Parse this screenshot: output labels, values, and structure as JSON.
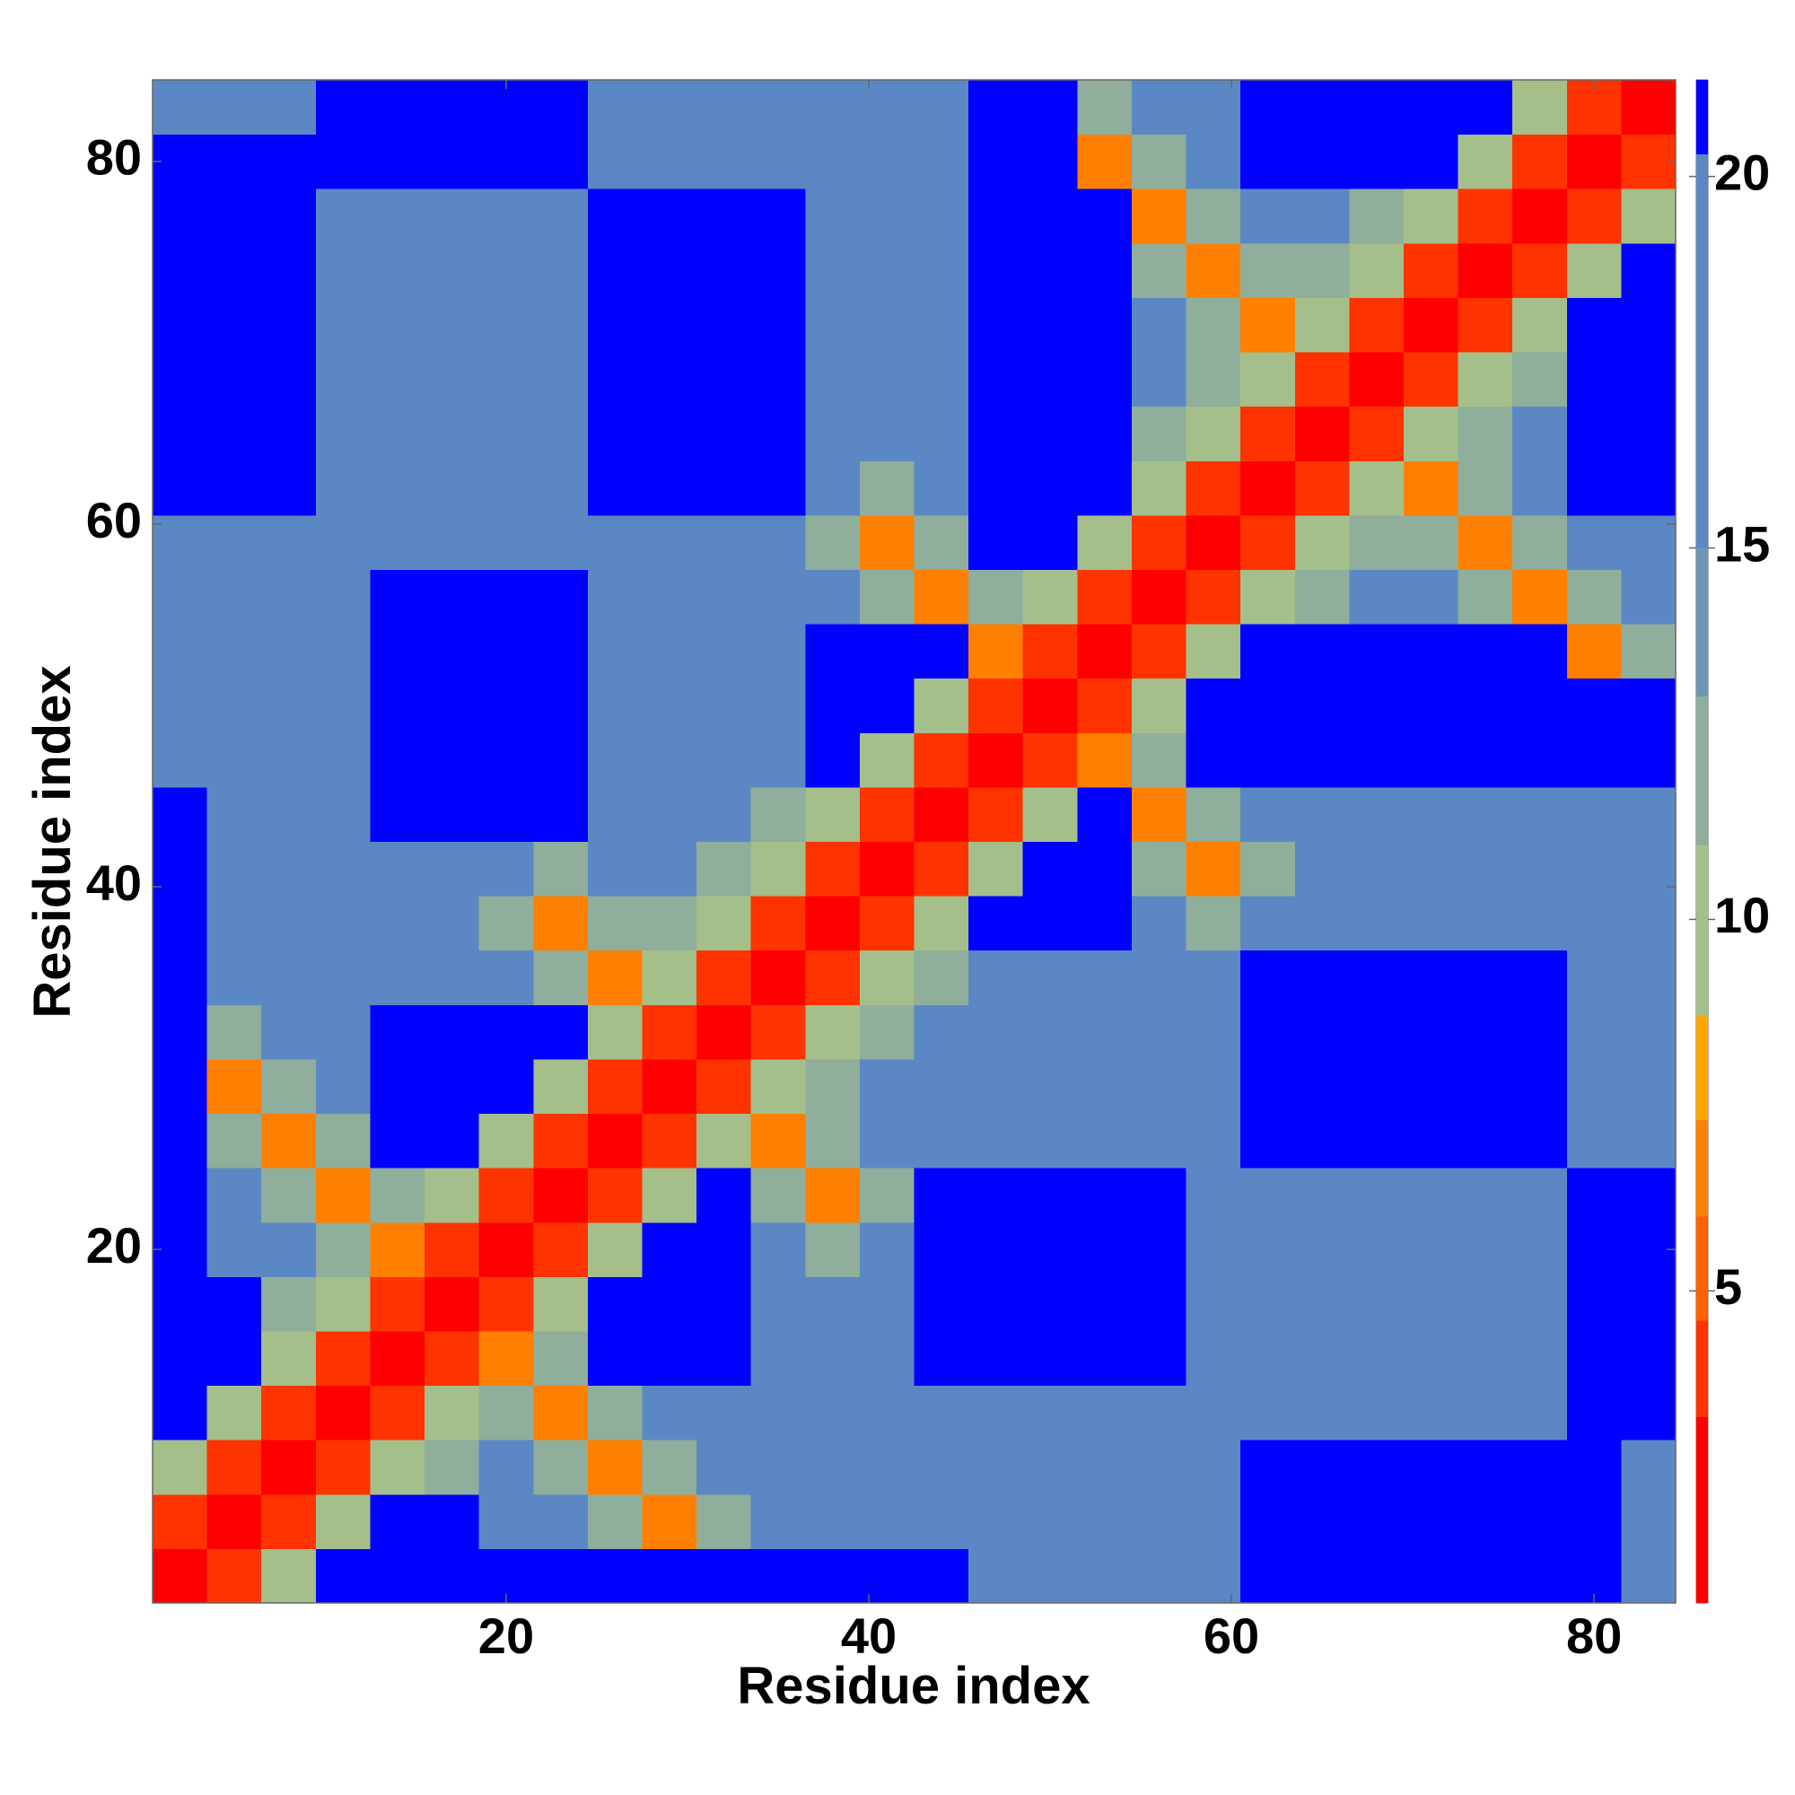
{
  "chart_data": {
    "type": "heatmap",
    "x_label": "Residue index",
    "y_label": "Residue index",
    "x": [
      2,
      5,
      8,
      11,
      14,
      17,
      20,
      23,
      26,
      29,
      32,
      35,
      38,
      41,
      44,
      47,
      50,
      53,
      56,
      59,
      62,
      65,
      68,
      71,
      74,
      77,
      80,
      83
    ],
    "y": [
      2,
      5,
      8,
      11,
      14,
      17,
      20,
      23,
      26,
      29,
      32,
      35,
      38,
      41,
      44,
      47,
      50,
      53,
      56,
      59,
      62,
      65,
      68,
      71,
      74,
      77,
      80,
      83
    ],
    "z": [
      [
        2,
        4,
        9,
        21,
        21,
        21,
        21,
        21,
        21,
        21,
        21,
        21,
        21,
        21,
        21,
        15,
        15,
        15,
        15,
        15,
        21,
        21,
        21,
        21,
        21,
        21,
        21,
        15
      ],
      [
        4,
        2,
        4,
        9,
        21,
        21,
        15,
        15,
        11,
        6,
        11,
        15,
        15,
        15,
        15,
        15,
        15,
        15,
        15,
        15,
        21,
        21,
        21,
        21,
        21,
        21,
        21,
        15
      ],
      [
        9,
        4,
        2,
        4,
        9,
        12,
        15,
        11,
        6,
        11,
        15,
        15,
        15,
        15,
        15,
        15,
        15,
        15,
        15,
        15,
        21,
        21,
        21,
        21,
        21,
        21,
        21,
        15
      ],
      [
        21,
        9,
        4,
        2,
        4,
        9,
        11,
        6,
        11,
        15,
        15,
        15,
        15,
        15,
        15,
        15,
        15,
        15,
        15,
        15,
        15,
        15,
        15,
        15,
        15,
        15,
        21,
        21
      ],
      [
        21,
        21,
        9,
        4,
        2,
        4,
        6,
        11,
        21,
        21,
        21,
        15,
        15,
        15,
        21,
        21,
        21,
        21,
        21,
        15,
        15,
        15,
        15,
        15,
        15,
        15,
        21,
        21
      ],
      [
        21,
        21,
        12,
        9,
        4,
        2,
        4,
        9,
        21,
        21,
        21,
        15,
        15,
        15,
        21,
        21,
        21,
        21,
        21,
        15,
        15,
        15,
        15,
        15,
        15,
        15,
        21,
        21
      ],
      [
        21,
        15,
        15,
        11,
        6,
        4,
        2,
        4,
        9,
        21,
        21,
        15,
        11,
        15,
        21,
        21,
        21,
        21,
        21,
        15,
        15,
        15,
        15,
        15,
        15,
        15,
        21,
        21
      ],
      [
        21,
        15,
        11,
        6,
        11,
        9,
        4,
        2,
        4,
        9,
        21,
        11,
        6,
        11,
        21,
        21,
        21,
        21,
        21,
        15,
        15,
        15,
        15,
        15,
        15,
        15,
        21,
        21
      ],
      [
        21,
        11,
        6,
        11,
        21,
        21,
        9,
        4,
        2,
        4,
        9,
        6,
        11,
        15,
        15,
        15,
        15,
        15,
        15,
        15,
        21,
        21,
        21,
        21,
        21,
        21,
        15,
        15
      ],
      [
        21,
        6,
        11,
        15,
        21,
        21,
        21,
        9,
        4,
        2,
        4,
        9,
        12,
        15,
        15,
        15,
        15,
        15,
        15,
        15,
        21,
        21,
        21,
        21,
        21,
        21,
        15,
        15
      ],
      [
        21,
        11,
        15,
        15,
        21,
        21,
        21,
        21,
        9,
        4,
        2,
        4,
        9,
        12,
        15,
        15,
        15,
        15,
        15,
        15,
        21,
        21,
        21,
        21,
        21,
        21,
        15,
        15
      ],
      [
        21,
        15,
        15,
        15,
        15,
        15,
        15,
        11,
        6,
        9,
        4,
        2,
        4,
        9,
        12,
        15,
        15,
        15,
        15,
        15,
        21,
        21,
        21,
        21,
        21,
        21,
        15,
        15
      ],
      [
        21,
        15,
        15,
        15,
        15,
        15,
        11,
        6,
        11,
        12,
        9,
        4,
        2,
        4,
        9,
        21,
        21,
        21,
        15,
        11,
        15,
        15,
        15,
        15,
        15,
        15,
        15,
        15
      ],
      [
        21,
        15,
        15,
        15,
        15,
        15,
        15,
        11,
        15,
        15,
        12,
        9,
        4,
        2,
        4,
        9,
        21,
        21,
        11,
        6,
        11,
        15,
        15,
        15,
        15,
        15,
        15,
        15
      ],
      [
        21,
        15,
        15,
        15,
        21,
        21,
        21,
        21,
        15,
        15,
        15,
        12,
        9,
        4,
        2,
        4,
        9,
        21,
        6,
        11,
        15,
        15,
        15,
        15,
        15,
        15,
        15,
        15
      ],
      [
        15,
        15,
        15,
        15,
        21,
        21,
        21,
        21,
        15,
        15,
        15,
        15,
        21,
        9,
        4,
        2,
        4,
        6,
        11,
        21,
        21,
        21,
        21,
        21,
        21,
        21,
        21,
        21
      ],
      [
        15,
        15,
        15,
        15,
        21,
        21,
        21,
        21,
        15,
        15,
        15,
        15,
        21,
        21,
        9,
        4,
        2,
        4,
        9,
        21,
        21,
        21,
        21,
        21,
        21,
        21,
        21,
        21
      ],
      [
        15,
        15,
        15,
        15,
        21,
        21,
        21,
        21,
        15,
        15,
        15,
        15,
        21,
        21,
        21,
        6,
        4,
        2,
        4,
        9,
        21,
        21,
        21,
        21,
        21,
        21,
        6,
        11
      ],
      [
        15,
        15,
        15,
        15,
        21,
        21,
        21,
        21,
        15,
        15,
        15,
        15,
        15,
        11,
        6,
        11,
        9,
        4,
        2,
        4,
        9,
        12,
        15,
        15,
        11,
        6,
        11,
        15
      ],
      [
        15,
        15,
        15,
        15,
        15,
        15,
        15,
        15,
        15,
        15,
        15,
        15,
        11,
        6,
        11,
        21,
        21,
        9,
        4,
        2,
        4,
        9,
        12,
        11,
        6,
        11,
        15,
        15
      ],
      [
        21,
        21,
        21,
        15,
        15,
        15,
        15,
        15,
        21,
        21,
        21,
        21,
        15,
        11,
        15,
        21,
        21,
        21,
        9,
        4,
        2,
        4,
        9,
        6,
        11,
        15,
        21,
        21
      ],
      [
        21,
        21,
        21,
        15,
        15,
        15,
        15,
        15,
        21,
        21,
        21,
        21,
        15,
        15,
        15,
        21,
        21,
        21,
        12,
        9,
        4,
        2,
        4,
        9,
        12,
        15,
        21,
        21
      ],
      [
        21,
        21,
        21,
        15,
        15,
        15,
        15,
        15,
        21,
        21,
        21,
        21,
        15,
        15,
        15,
        21,
        21,
        21,
        15,
        12,
        9,
        4,
        2,
        4,
        9,
        12,
        21,
        21
      ],
      [
        21,
        21,
        21,
        15,
        15,
        15,
        15,
        15,
        21,
        21,
        21,
        21,
        15,
        15,
        15,
        21,
        21,
        21,
        15,
        11,
        6,
        9,
        4,
        2,
        4,
        9,
        21,
        21
      ],
      [
        21,
        21,
        21,
        15,
        15,
        15,
        15,
        15,
        21,
        21,
        21,
        21,
        15,
        15,
        15,
        21,
        21,
        21,
        11,
        6,
        11,
        12,
        9,
        4,
        2,
        4,
        9,
        21
      ],
      [
        21,
        21,
        21,
        15,
        15,
        15,
        15,
        15,
        21,
        21,
        21,
        21,
        15,
        15,
        15,
        21,
        21,
        21,
        6,
        11,
        15,
        15,
        12,
        9,
        4,
        2,
        4,
        9
      ],
      [
        21,
        21,
        21,
        21,
        21,
        21,
        21,
        21,
        15,
        15,
        15,
        15,
        15,
        15,
        15,
        21,
        21,
        6,
        11,
        15,
        21,
        21,
        21,
        21,
        9,
        4,
        2,
        4
      ],
      [
        15,
        15,
        15,
        21,
        21,
        21,
        21,
        21,
        15,
        15,
        15,
        15,
        15,
        15,
        15,
        21,
        21,
        11,
        15,
        15,
        21,
        21,
        21,
        21,
        21,
        9,
        4,
        2
      ]
    ],
    "xlim": [
      0.5,
      84.5
    ],
    "ylim": [
      0.5,
      84.5
    ],
    "xticks": [
      20,
      40,
      60,
      80
    ],
    "yticks": [
      20,
      40,
      60,
      80
    ],
    "colorbar": {
      "lim": [
        0.8,
        21.3
      ],
      "ticks": [
        5,
        10,
        15,
        20
      ],
      "scale": [
        [
          0.8,
          "#ff0000"
        ],
        [
          3.3,
          "#ff3300"
        ],
        [
          4.6,
          "#ff6000"
        ],
        [
          6,
          "#ff8000"
        ],
        [
          7.3,
          "#ffa500"
        ],
        [
          8.7,
          "#a4bf8a"
        ],
        [
          11,
          "#8fae9c"
        ],
        [
          13,
          "#6f96b4"
        ],
        [
          15,
          "#5b88c4"
        ],
        [
          20.3,
          "#0000ff"
        ]
      ]
    }
  }
}
